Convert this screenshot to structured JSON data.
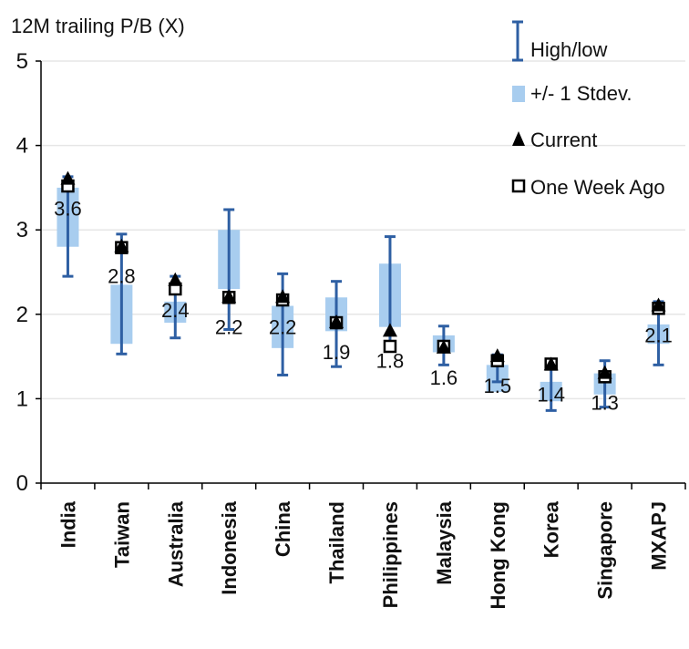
{
  "chart_data": {
    "type": "errorbar",
    "ylabel": "12M trailing P/B (X)",
    "ylim": [
      0,
      5
    ],
    "yticks": [
      0,
      1,
      2,
      3,
      4,
      5
    ],
    "grid": true,
    "legend_position": "top-right",
    "categories": [
      "India",
      "Taiwan",
      "Australia",
      "Indonesia",
      "China",
      "Thailand",
      "Philippines",
      "Malaysia",
      "Hong Kong",
      "Korea",
      "Singapore",
      "MXAPJ"
    ],
    "series": [
      {
        "name": "High/low",
        "values": [
          [
            2.45,
            3.63
          ],
          [
            1.53,
            2.95
          ],
          [
            1.72,
            2.45
          ],
          [
            1.82,
            3.24
          ],
          [
            1.28,
            2.48
          ],
          [
            1.38,
            2.39
          ],
          [
            1.6,
            2.92
          ],
          [
            1.4,
            1.86
          ],
          [
            1.2,
            1.52
          ],
          [
            0.86,
            1.44
          ],
          [
            0.9,
            1.45
          ],
          [
            1.4,
            2.15
          ]
        ]
      },
      {
        "name": "+/- 1 Stdev.",
        "values": [
          [
            2.8,
            3.5
          ],
          [
            1.65,
            2.35
          ],
          [
            1.9,
            2.15
          ],
          [
            2.3,
            3.0
          ],
          [
            1.6,
            2.1
          ],
          [
            1.8,
            2.2
          ],
          [
            1.85,
            2.6
          ],
          [
            1.55,
            1.75
          ],
          [
            1.08,
            1.4
          ],
          [
            0.97,
            1.2
          ],
          [
            1.05,
            1.3
          ],
          [
            1.65,
            1.88
          ]
        ]
      },
      {
        "name": "Current",
        "values": [
          3.6,
          2.8,
          2.4,
          2.2,
          2.2,
          1.9,
          1.8,
          1.6,
          1.5,
          1.4,
          1.3,
          2.1
        ]
      },
      {
        "name": "One Week Ago",
        "values": [
          3.52,
          2.79,
          2.3,
          2.2,
          2.17,
          1.9,
          1.62,
          1.62,
          1.45,
          1.41,
          1.26,
          2.07
        ]
      }
    ],
    "data_labels": [
      "3.6",
      "2.8",
      "2.4",
      "2.2",
      "2.2",
      "1.9",
      "1.8",
      "1.6",
      "1.5",
      "1.4",
      "1.3",
      "2.1"
    ],
    "colors": {
      "high_low": "#2e5fa3",
      "stdev": "#a8cdef",
      "current": "#000000",
      "week_ago": "#000000",
      "grid": "#e6e6e6",
      "axis": "#000000"
    }
  }
}
